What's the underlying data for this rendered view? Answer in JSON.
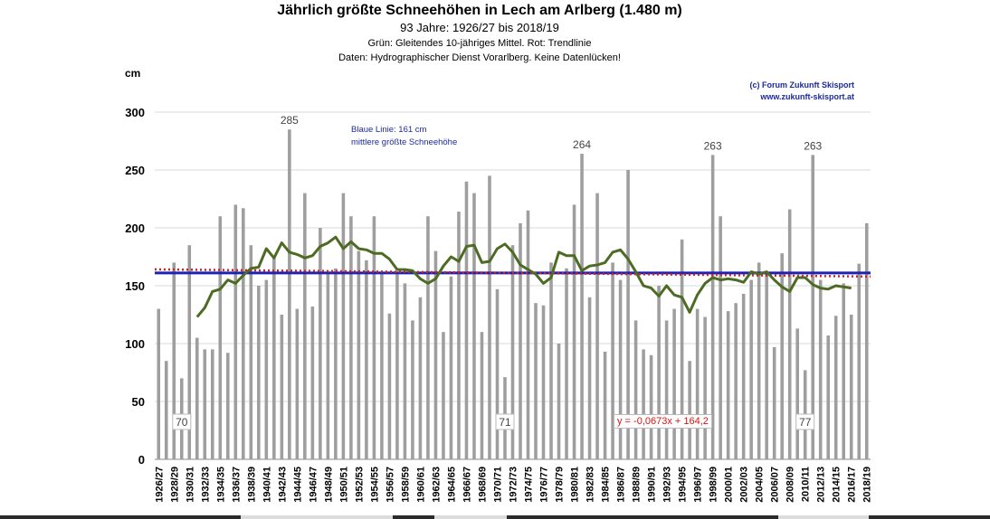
{
  "title": "Jährlich größte Schneehöhen in Lech am Arlberg (1.480 m)",
  "subtitle": "93 Jahre: 1926/27 bis 2018/19",
  "note1": "Grün: Gleitendes 10-jähriges Mittel. Rot: Trendlinie",
  "note2": "Daten: Hydrographischer Dienst Vorarlberg. Keine Datenlücken!",
  "credit1": "(c) Forum Zukunft Skisport",
  "credit2": "www.zukunft-skisport.at",
  "mean_line_label1": "Blaue Linie: 161 cm",
  "mean_line_label2": "mittlere größte Schneehöhe",
  "trend_equation": "y = -0,0673x + 164,2",
  "chart_data": {
    "type": "bar",
    "ylabel": "cm",
    "ylim": [
      0,
      300
    ],
    "yticks": [
      0,
      50,
      100,
      150,
      200,
      250,
      300
    ],
    "categories": [
      "1926/27",
      "1927/28",
      "1928/29",
      "1929/30",
      "1930/31",
      "1931/32",
      "1932/33",
      "1933/34",
      "1934/35",
      "1935/36",
      "1936/37",
      "1937/38",
      "1938/39",
      "1939/40",
      "1940/41",
      "1941/42",
      "1942/43",
      "1943/44",
      "1944/45",
      "1945/46",
      "1946/47",
      "1947/48",
      "1948/49",
      "1949/50",
      "1950/51",
      "1951/52",
      "1952/53",
      "1953/54",
      "1954/55",
      "1955/56",
      "1956/57",
      "1957/58",
      "1958/59",
      "1959/60",
      "1960/61",
      "1961/62",
      "1962/63",
      "1963/64",
      "1964/65",
      "1965/66",
      "1966/67",
      "1967/68",
      "1968/69",
      "1969/70",
      "1970/71",
      "1971/72",
      "1972/73",
      "1973/74",
      "1974/75",
      "1975/76",
      "1976/77",
      "1977/78",
      "1978/79",
      "1979/80",
      "1980/81",
      "1981/82",
      "1982/83",
      "1983/84",
      "1984/85",
      "1985/86",
      "1986/87",
      "1987/88",
      "1988/89",
      "1989/90",
      "1990/91",
      "1991/92",
      "1992/93",
      "1993/94",
      "1994/95",
      "1995/96",
      "1996/97",
      "1997/98",
      "1998/99",
      "1999/00",
      "2000/01",
      "2001/02",
      "2002/03",
      "2003/04",
      "2004/05",
      "2005/06",
      "2006/07",
      "2007/08",
      "2008/09",
      "2009/10",
      "2010/11",
      "2011/12",
      "2012/13",
      "2013/14",
      "2014/15",
      "2015/16",
      "2016/17",
      "2017/18",
      "2018/19"
    ],
    "x_tick_labels": [
      "1926/27",
      "1928/29",
      "1930/31",
      "1932/33",
      "1934/35",
      "1936/37",
      "1938/39",
      "1940/41",
      "1942/43",
      "1944/45",
      "1946/47",
      "1948/49",
      "1950/51",
      "1952/53",
      "1954/55",
      "1956/57",
      "1958/59",
      "1960/61",
      "1962/63",
      "1964/65",
      "1966/67",
      "1968/69",
      "1970/71",
      "1972/73",
      "1974/75",
      "1976/77",
      "1978/79",
      "1980/81",
      "1982/83",
      "1984/85",
      "1986/87",
      "1988/89",
      "1990/91",
      "1992/93",
      "1994/95",
      "1996/97",
      "1998/99",
      "2000/01",
      "2002/03",
      "2004/05",
      "2006/07",
      "2008/09",
      "2010/11",
      "2012/13",
      "2014/15",
      "2016/17",
      "2018/19"
    ],
    "series": [
      {
        "type": "bar",
        "color": "#9e9e9e",
        "values": [
          130,
          85,
          170,
          70,
          185,
          105,
          95,
          95,
          210,
          92,
          220,
          217,
          185,
          150,
          155,
          175,
          125,
          285,
          130,
          230,
          132,
          200,
          160,
          165,
          230,
          210,
          180,
          172,
          210,
          160,
          126,
          160,
          152,
          120,
          140,
          210,
          180,
          110,
          158,
          214,
          240,
          230,
          110,
          245,
          147,
          71,
          185,
          204,
          215,
          135,
          133,
          170,
          100,
          165,
          220,
          264,
          140,
          230,
          93,
          170,
          155,
          250,
          120,
          95,
          90,
          150,
          120,
          130,
          190,
          85,
          130,
          123,
          263,
          210,
          128,
          135,
          143,
          155,
          170,
          160,
          97,
          178,
          216,
          113,
          77,
          263,
          155,
          107,
          124,
          152,
          125,
          169,
          204
        ]
      },
      {
        "type": "line",
        "color": "#4d6b22",
        "values": [
          null,
          null,
          null,
          null,
          null,
          123,
          131,
          145,
          147,
          155,
          152,
          159,
          165,
          166,
          182,
          174,
          187,
          179,
          177,
          174,
          176,
          184,
          187,
          192,
          182,
          188,
          182,
          181,
          178,
          178,
          173,
          164,
          164,
          163,
          156,
          152,
          156,
          167,
          175,
          171,
          184,
          185,
          170,
          171,
          182,
          186,
          179,
          168,
          164,
          160,
          152,
          157,
          179,
          176,
          176,
          163,
          167,
          168,
          170,
          179,
          181,
          173,
          162,
          150,
          148,
          141,
          150,
          142,
          140,
          127,
          142,
          152,
          157,
          155,
          156,
          155,
          153,
          162,
          160,
          162,
          155,
          149,
          145,
          157,
          157,
          151,
          148,
          147,
          150,
          149,
          148,
          null,
          null
        ]
      }
    ],
    "mean_line": {
      "value": 161,
      "color": "#1c22b4"
    },
    "trend": {
      "slope": -0.0673,
      "intercept": 164.2,
      "color": "#d11f1f"
    },
    "annotations": [
      {
        "text": "285",
        "category": "1943/44",
        "value": 285
      },
      {
        "text": "264",
        "category": "1981/82",
        "value": 264
      },
      {
        "text": "263",
        "category": "1998/99",
        "value": 263
      },
      {
        "text": "263",
        "category": "2011/12",
        "value": 263
      },
      {
        "text": "70",
        "category": "1929/30",
        "value": 70
      },
      {
        "text": "71",
        "category": "1971/72",
        "value": 71
      },
      {
        "text": "77",
        "category": "2010/11",
        "value": 77
      }
    ],
    "grid": true,
    "legend": "none"
  }
}
